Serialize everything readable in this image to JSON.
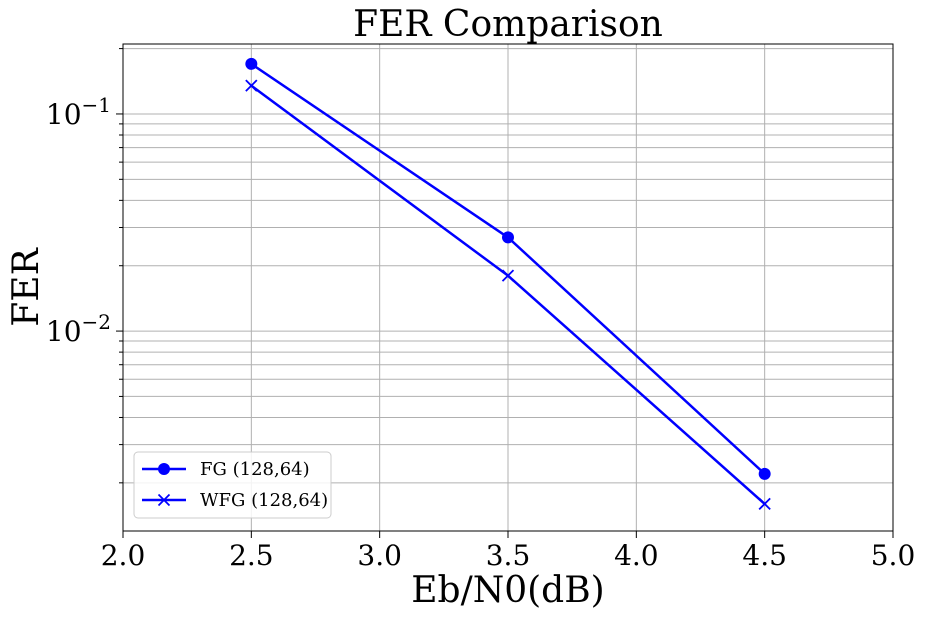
{
  "chart_data": {
    "type": "line",
    "title": "FER Comparison",
    "xlabel": "Eb/N0(dB)",
    "ylabel": "FER",
    "x": [
      2.5,
      3.5,
      4.5
    ],
    "series": [
      {
        "name": "FG (128,64)",
        "values": [
          0.17,
          0.027,
          0.0022
        ],
        "color": "#0000ff",
        "marker": "circle"
      },
      {
        "name": "WFG (128,64)",
        "values": [
          0.135,
          0.018,
          0.0016
        ],
        "color": "#0000ff",
        "marker": "x"
      }
    ],
    "xlim": [
      2.0,
      5.0
    ],
    "ylim": [
      0.0012,
      0.21
    ],
    "yscale": "log",
    "x_ticks": [
      "2.0",
      "2.5",
      "3.0",
      "3.5",
      "4.0",
      "4.5",
      "5.0"
    ],
    "y_major_ticks": [
      {
        "base": "10",
        "exponent": "−1"
      },
      {
        "base": "10",
        "exponent": "−2"
      }
    ],
    "grid": true,
    "legend_position": "lower-left"
  }
}
